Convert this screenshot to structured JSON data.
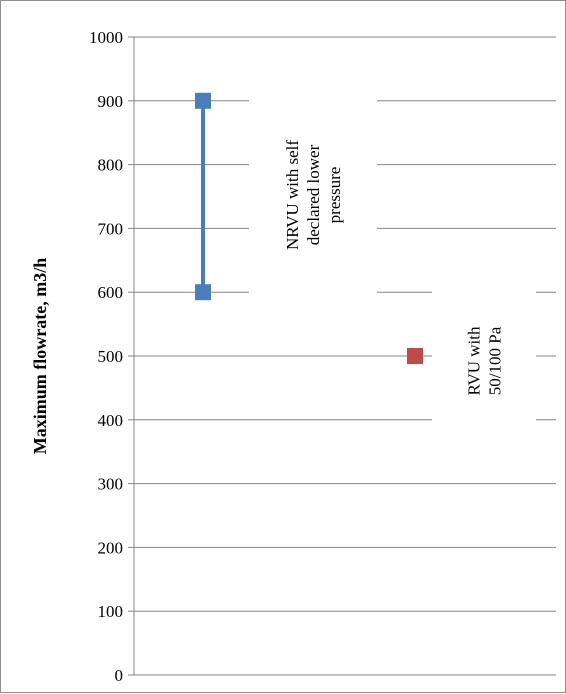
{
  "chart_data": {
    "type": "line",
    "ylabel": "Maximum flowrate, m3/h",
    "xlabel": "",
    "ylim": [
      0,
      1000
    ],
    "y_ticks": [
      0,
      100,
      200,
      300,
      400,
      500,
      600,
      700,
      800,
      900,
      1000
    ],
    "grid": "horizontal",
    "legend": "none",
    "series": [
      {
        "points": [
          {
            "x": 1,
            "y": 600
          },
          {
            "x": 1,
            "y": 900
          }
        ],
        "color": "#4a7ebb",
        "marker": "square",
        "connected": true
      },
      {
        "points": [
          {
            "x": 2,
            "y": 500
          }
        ],
        "color": "#be4b48",
        "marker": "square",
        "connected": false
      }
    ],
    "annotations": [
      {
        "lines": [
          "NRVU with self",
          "declared lower",
          "pressure"
        ]
      },
      {
        "lines": [
          "RVU with",
          "50/100 Pa"
        ]
      }
    ]
  }
}
